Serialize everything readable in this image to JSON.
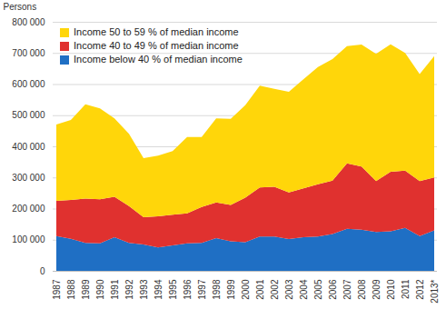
{
  "chart_data": {
    "type": "area",
    "stacked": true,
    "grid": true,
    "legend": "top-left",
    "y_label": "Persons",
    "categories": [
      "1987",
      "1988",
      "1989",
      "1990",
      "1991",
      "1992",
      "1993",
      "1994",
      "1995",
      "1996",
      "1997",
      "1998",
      "1999",
      "2000",
      "2001",
      "2002",
      "2003",
      "2004",
      "2005",
      "2006",
      "2007",
      "2008",
      "2009",
      "2010",
      "2011",
      "2012",
      "2013*"
    ],
    "series": [
      {
        "name": "Income below 40 % of median income",
        "color": "#1f6fc4",
        "values": [
          112000,
          103000,
          90000,
          88000,
          108000,
          90000,
          85000,
          75000,
          82000,
          88000,
          90000,
          105000,
          95000,
          92000,
          110000,
          110000,
          102000,
          108000,
          110000,
          118000,
          135000,
          132000,
          125000,
          127000,
          138000,
          112000,
          130000
        ]
      },
      {
        "name": "Income 40 to 49 % of median income",
        "color": "#e0312f",
        "values": [
          113000,
          125000,
          142000,
          142000,
          130000,
          118000,
          87000,
          100000,
          98000,
          97000,
          115000,
          115000,
          117000,
          143000,
          158000,
          160000,
          150000,
          157000,
          168000,
          172000,
          210000,
          203000,
          163000,
          191000,
          184000,
          176000,
          170000
        ]
      },
      {
        "name": "Income 50 to 59 % of median income",
        "color": "#ffd60a",
        "values": [
          245000,
          257000,
          303000,
          292000,
          252000,
          232000,
          190000,
          195000,
          205000,
          245000,
          225000,
          270000,
          276000,
          297000,
          327000,
          315000,
          323000,
          350000,
          377000,
          390000,
          377000,
          392000,
          409000,
          410000,
          378000,
          344000,
          390000
        ]
      }
    ],
    "ylim": [
      0,
      800000
    ],
    "yticks": [
      0,
      {
        "value": 100000,
        "label": "100 000"
      },
      {
        "value": 200000,
        "label": "200 000"
      },
      {
        "value": 300000,
        "label": "300 000"
      },
      {
        "value": 400000,
        "label": "400 000"
      },
      {
        "value": 500000,
        "label": "500 000"
      },
      {
        "value": 600000,
        "label": "600 000"
      },
      {
        "value": 700000,
        "label": "700 000"
      },
      {
        "value": 800000,
        "label": "800 000"
      }
    ]
  }
}
